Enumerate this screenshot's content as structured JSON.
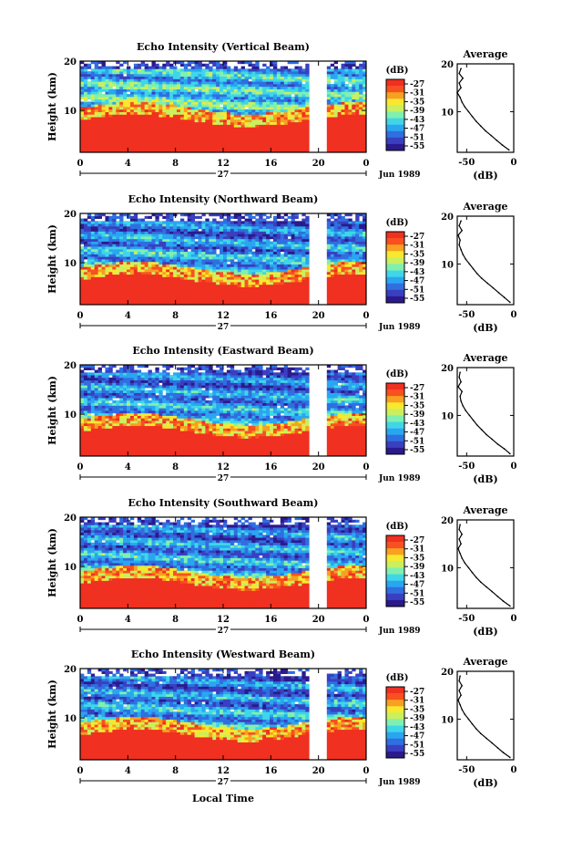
{
  "figure": {
    "xlabel": "Local Time",
    "date_label": "27",
    "month_label": "Jun 1989",
    "colorbar_title": "(dB)",
    "average_title": "Average",
    "average_xlabel": "(dB)",
    "ylabel": "Height (km)"
  },
  "colors": {
    "colormap": [
      "#2a1a8c",
      "#3a3fc0",
      "#2f6fe0",
      "#2aa6f0",
      "#3fd6e8",
      "#7ff0b0",
      "#c8f060",
      "#f8e830",
      "#f8a020",
      "#f85020",
      "#f03020"
    ],
    "background": "#ffffff"
  },
  "chart_data": [
    {
      "type": "heatmap",
      "title": "Echo Intensity (Vertical Beam)",
      "xlabel": "",
      "ylabel": "Height (km)",
      "xlim": [
        0,
        24
      ],
      "ylim": [
        1.5,
        20
      ],
      "x_ticks": [
        "0",
        "4",
        "8",
        "12",
        "16",
        "20",
        "0"
      ],
      "y_ticks": [
        "10",
        "20"
      ],
      "data_gap_hours": [
        19.2,
        20.6
      ],
      "colorbar": {
        "label": "(dB)",
        "ticks": [
          "-27",
          "-31",
          "-35",
          "-39",
          "-43",
          "-47",
          "-51",
          "-55"
        ],
        "range": [
          -55,
          -27
        ]
      },
      "average": {
        "title": "Average",
        "xlabel": "(dB)",
        "xlim": [
          -60,
          0
        ],
        "ylim": [
          1.5,
          20
        ],
        "x_ticks": [
          "-50",
          "0"
        ],
        "y_ticks": [
          "10",
          "20"
        ],
        "height_km": [
          2,
          3,
          4,
          5,
          6,
          7,
          8,
          9,
          10,
          11,
          12,
          13,
          14,
          15,
          16,
          17,
          18,
          19
        ],
        "power_db": [
          -5,
          -12,
          -18,
          -24,
          -30,
          -35,
          -40,
          -44,
          -48,
          -52,
          -55,
          -57,
          -60,
          -56,
          -58,
          -54,
          -58,
          -56
        ]
      }
    },
    {
      "type": "heatmap",
      "title": "Echo Intensity (Northward Beam)",
      "xlabel": "",
      "ylabel": "Height (km)",
      "xlim": [
        0,
        24
      ],
      "ylim": [
        1.5,
        20
      ],
      "x_ticks": [
        "0",
        "4",
        "8",
        "12",
        "16",
        "20",
        "0"
      ],
      "y_ticks": [
        "10",
        "20"
      ],
      "data_gap_hours": [
        19.2,
        20.6
      ],
      "colorbar": {
        "label": "(dB)",
        "ticks": [
          "-27",
          "-31",
          "-35",
          "-39",
          "-43",
          "-47",
          "-51",
          "-55"
        ],
        "range": [
          -55,
          -27
        ]
      },
      "average": {
        "title": "Average",
        "xlabel": "(dB)",
        "xlim": [
          -60,
          0
        ],
        "ylim": [
          1.5,
          20
        ],
        "x_ticks": [
          "-50",
          "0"
        ],
        "y_ticks": [
          "10",
          "20"
        ],
        "height_km": [
          2,
          3,
          4,
          5,
          6,
          7,
          8,
          9,
          10,
          11,
          12,
          13,
          14,
          15,
          16,
          17,
          18,
          19
        ],
        "power_db": [
          -4,
          -10,
          -16,
          -22,
          -28,
          -34,
          -39,
          -43,
          -47,
          -51,
          -54,
          -56,
          -58,
          -57,
          -59,
          -55,
          -58,
          -56
        ]
      }
    },
    {
      "type": "heatmap",
      "title": "Echo Intensity (Eastward Beam)",
      "xlabel": "",
      "ylabel": "Height (km)",
      "xlim": [
        0,
        24
      ],
      "ylim": [
        1.5,
        20
      ],
      "x_ticks": [
        "0",
        "4",
        "8",
        "12",
        "16",
        "20",
        "0"
      ],
      "y_ticks": [
        "10",
        "20"
      ],
      "data_gap_hours": [
        19.2,
        20.6
      ],
      "colorbar": {
        "label": "(dB)",
        "ticks": [
          "-27",
          "-31",
          "-35",
          "-39",
          "-43",
          "-47",
          "-51",
          "-55"
        ],
        "range": [
          -55,
          -27
        ]
      },
      "average": {
        "title": "Average",
        "xlabel": "(dB)",
        "xlim": [
          -60,
          0
        ],
        "ylim": [
          1.5,
          20
        ],
        "x_ticks": [
          "-50",
          "0"
        ],
        "y_ticks": [
          "10",
          "20"
        ],
        "height_km": [
          2,
          3,
          4,
          5,
          6,
          7,
          8,
          9,
          10,
          11,
          12,
          13,
          14,
          15,
          16,
          17,
          18,
          19
        ],
        "power_db": [
          -4,
          -10,
          -17,
          -23,
          -29,
          -34,
          -39,
          -43,
          -47,
          -51,
          -54,
          -56,
          -57,
          -55,
          -59,
          -56,
          -58,
          -57
        ]
      }
    },
    {
      "type": "heatmap",
      "title": "Echo Intensity (Southward Beam)",
      "xlabel": "",
      "ylabel": "Height (km)",
      "xlim": [
        0,
        24
      ],
      "ylim": [
        1.5,
        20
      ],
      "x_ticks": [
        "0",
        "4",
        "8",
        "12",
        "16",
        "20",
        "0"
      ],
      "y_ticks": [
        "10",
        "20"
      ],
      "data_gap_hours": [
        19.2,
        20.6
      ],
      "colorbar": {
        "label": "(dB)",
        "ticks": [
          "-27",
          "-31",
          "-35",
          "-39",
          "-43",
          "-47",
          "-51",
          "-55"
        ],
        "range": [
          -55,
          -27
        ]
      },
      "average": {
        "title": "Average",
        "xlabel": "(dB)",
        "xlim": [
          -60,
          0
        ],
        "ylim": [
          1.5,
          20
        ],
        "x_ticks": [
          "-50",
          "0"
        ],
        "y_ticks": [
          "10",
          "20"
        ],
        "height_km": [
          2,
          3,
          4,
          5,
          6,
          7,
          8,
          9,
          10,
          11,
          12,
          13,
          14,
          15,
          16,
          17,
          18,
          19
        ],
        "power_db": [
          -4,
          -11,
          -17,
          -23,
          -29,
          -35,
          -40,
          -44,
          -48,
          -52,
          -55,
          -57,
          -59,
          -56,
          -58,
          -55,
          -58,
          -57
        ]
      }
    },
    {
      "type": "heatmap",
      "title": "Echo Intensity (Westward Beam)",
      "xlabel": "Local Time",
      "ylabel": "Height (km)",
      "xlim": [
        0,
        24
      ],
      "ylim": [
        1.5,
        20
      ],
      "x_ticks": [
        "0",
        "4",
        "8",
        "12",
        "16",
        "20",
        "0"
      ],
      "y_ticks": [
        "10",
        "20"
      ],
      "data_gap_hours": [
        19.2,
        20.6
      ],
      "colorbar": {
        "label": "(dB)",
        "ticks": [
          "-27",
          "-31",
          "-35",
          "-39",
          "-43",
          "-47",
          "-51",
          "-55"
        ],
        "range": [
          -55,
          -27
        ]
      },
      "average": {
        "title": "Average",
        "xlabel": "(dB)",
        "xlim": [
          -60,
          0
        ],
        "ylim": [
          1.5,
          20
        ],
        "x_ticks": [
          "-50",
          "0"
        ],
        "y_ticks": [
          "10",
          "20"
        ],
        "height_km": [
          2,
          3,
          4,
          5,
          6,
          7,
          8,
          9,
          10,
          11,
          12,
          13,
          14,
          15,
          16,
          17,
          18,
          19
        ],
        "power_db": [
          -4,
          -11,
          -17,
          -23,
          -29,
          -35,
          -40,
          -44,
          -48,
          -52,
          -55,
          -57,
          -59,
          -56,
          -58,
          -55,
          -58,
          -57
        ]
      }
    }
  ]
}
